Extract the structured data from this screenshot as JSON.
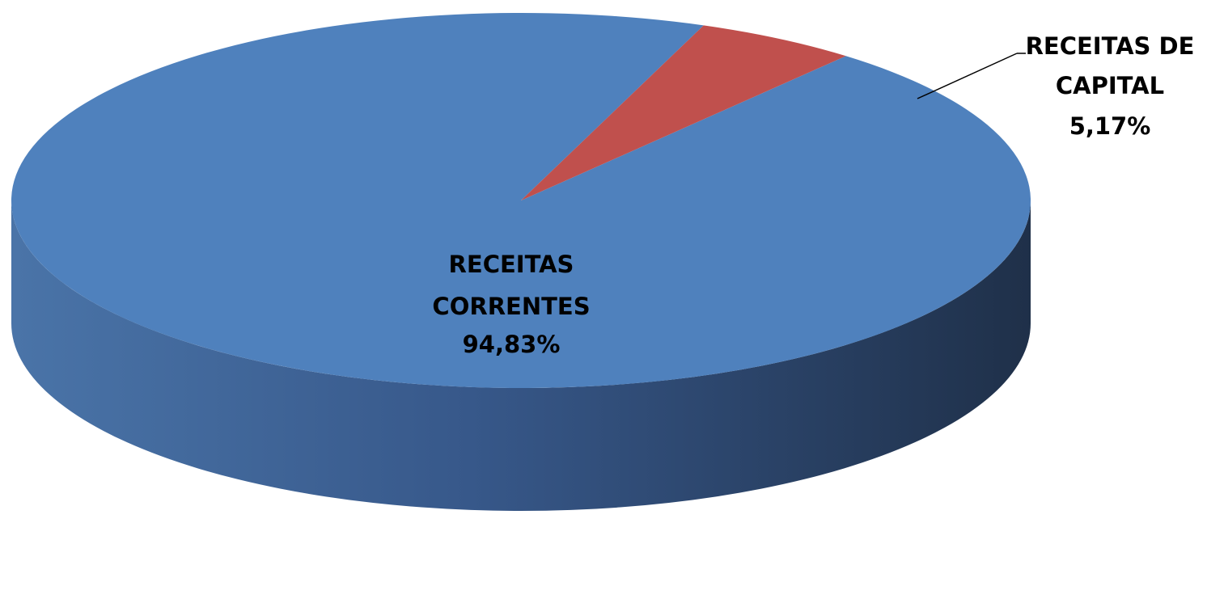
{
  "chart_data": {
    "type": "pie",
    "title": "",
    "slices": [
      {
        "name": "RECEITAS CORRENTES",
        "label_lines": [
          "RECEITAS",
          "CORRENTES"
        ],
        "value_label": "94,83%",
        "value": 94.83,
        "color": "#4F81BD"
      },
      {
        "name": "RECEITAS DE CAPITAL",
        "label_lines": [
          "RECEITAS DE",
          "CAPITAL"
        ],
        "value_label": "5,17%",
        "value": 5.17,
        "color": "#C0504D"
      }
    ],
    "legend": "none"
  }
}
